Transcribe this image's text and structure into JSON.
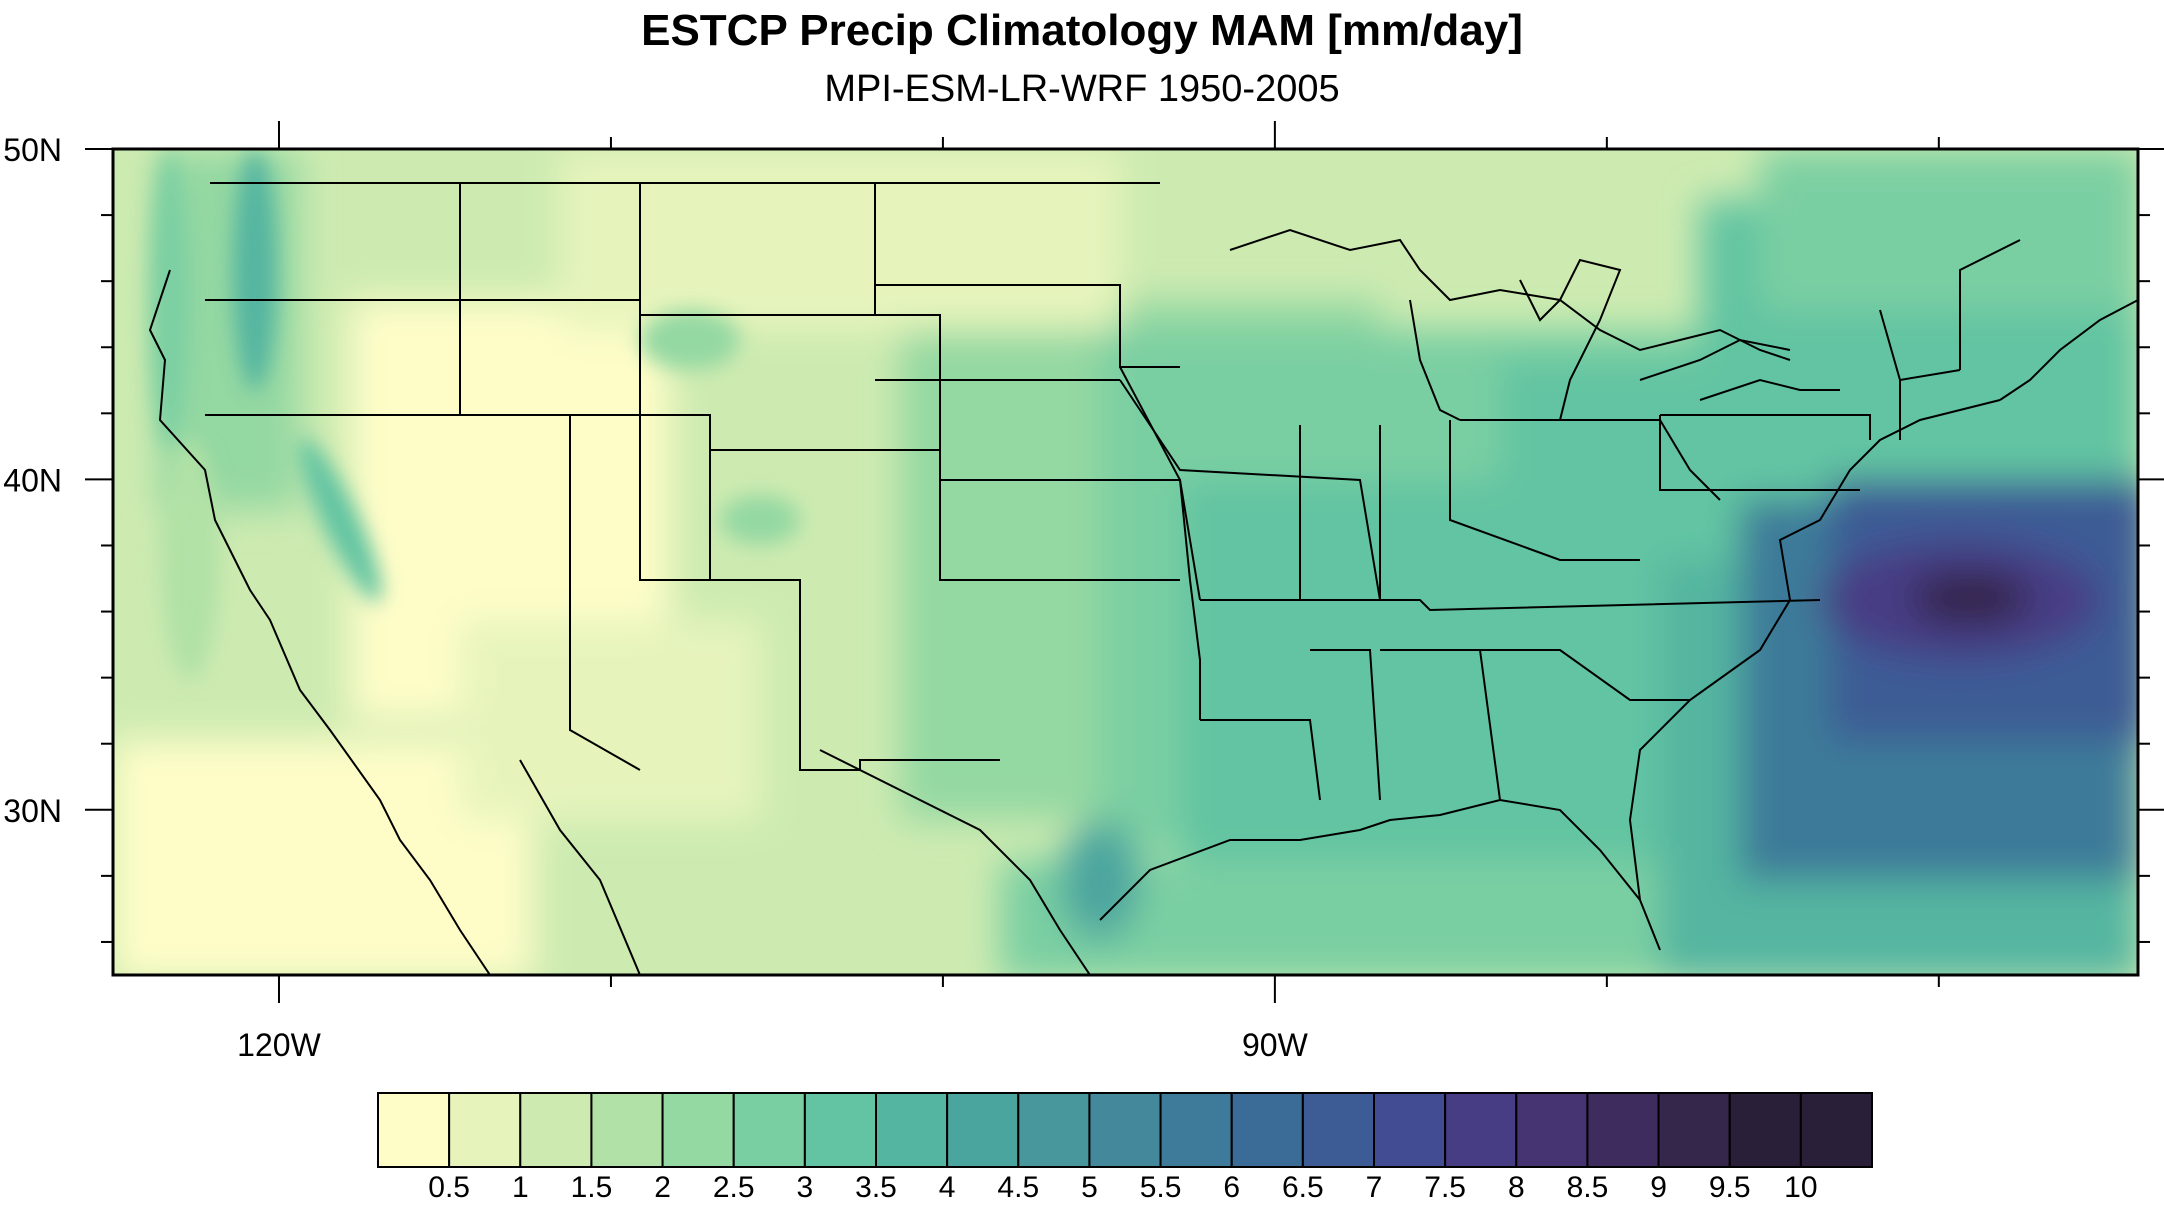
{
  "title": "ESTCP Precip Climatology MAM [mm/day]",
  "subtitle": "MPI-ESM-LR-WRF 1950-2005",
  "map": {
    "extent": {
      "lon": [
        -125,
        -64
      ],
      "lat": [
        25,
        50
      ]
    },
    "lat_labels": [
      {
        "lat": 50,
        "text": "50N"
      },
      {
        "lat": 40,
        "text": "40N"
      },
      {
        "lat": 30,
        "text": "30N"
      }
    ],
    "lon_labels": [
      {
        "lon": -120,
        "text": "120W"
      },
      {
        "lon": -90,
        "text": "90W"
      }
    ],
    "major_lon_ticks": [
      -120,
      -90
    ],
    "minor_lon_ticks": [
      -110,
      -100,
      -80,
      -70
    ],
    "major_lat_ticks": [
      50,
      40,
      30
    ],
    "minor_lat_ticks": [
      48,
      46,
      44,
      42,
      38,
      36,
      34,
      32,
      28,
      26
    ]
  },
  "colorbar": {
    "labels": [
      "0.5",
      "1",
      "1.5",
      "2",
      "2.5",
      "3",
      "3.5",
      "4",
      "4.5",
      "5",
      "5.5",
      "6",
      "6.5",
      "7",
      "7.5",
      "8",
      "8.5",
      "9",
      "9.5",
      "10"
    ],
    "colors": [
      "#fefdc8",
      "#e6f4bc",
      "#cdebb1",
      "#b1e1a6",
      "#94d8a2",
      "#7acfa2",
      "#62c4a2",
      "#54b5a0",
      "#4ba59f",
      "#47979d",
      "#43889b",
      "#3e7a99",
      "#3b6b97",
      "#3d5c95",
      "#424c92",
      "#463d85",
      "#453372",
      "#3f2c5f",
      "#35264c",
      "#2a1f39"
    ]
  }
}
